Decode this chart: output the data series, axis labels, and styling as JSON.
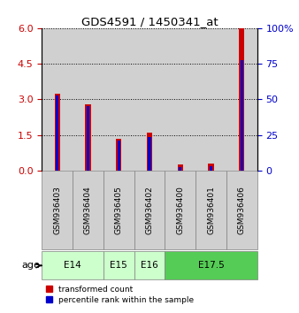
{
  "title": "GDS4591 / 1450341_at",
  "samples": [
    "GSM936403",
    "GSM936404",
    "GSM936405",
    "GSM936402",
    "GSM936400",
    "GSM936401",
    "GSM936406"
  ],
  "red_values": [
    3.25,
    2.8,
    1.35,
    1.6,
    0.25,
    0.3,
    6.0
  ],
  "blue_percentiles": [
    52.5,
    45.0,
    20.83,
    23.33,
    2.5,
    3.33,
    77.5
  ],
  "age_groups": [
    {
      "label": "E14",
      "span": [
        0,
        2
      ],
      "color": "#ccffcc"
    },
    {
      "label": "E15",
      "span": [
        2,
        3
      ],
      "color": "#ccffcc"
    },
    {
      "label": "E16",
      "span": [
        3,
        4
      ],
      "color": "#ccffcc"
    },
    {
      "label": "E17.5",
      "span": [
        4,
        7
      ],
      "color": "#55cc55"
    }
  ],
  "ylim_left": [
    0,
    6
  ],
  "ylim_right": [
    0,
    100
  ],
  "yticks_left": [
    0,
    1.5,
    3,
    4.5,
    6
  ],
  "yticks_right": [
    0,
    25,
    50,
    75,
    100
  ],
  "ytick_labels_right": [
    "0",
    "25",
    "50",
    "75",
    "100%"
  ],
  "left_color": "#cc0000",
  "right_color": "#0000cc",
  "red_bar_width": 0.18,
  "blue_bar_width": 0.09,
  "bg_color": "#d0d0d0",
  "plot_bg": "#ffffff",
  "legend_labels": [
    "transformed count",
    "percentile rank within the sample"
  ]
}
